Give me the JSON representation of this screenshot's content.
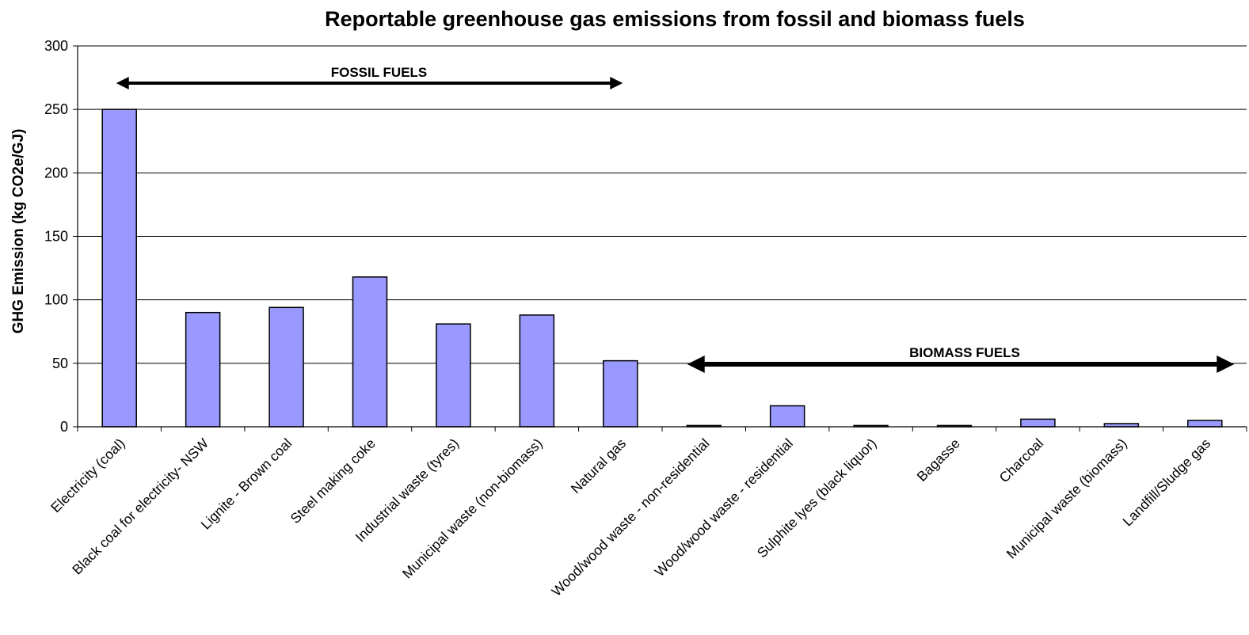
{
  "chart_data": {
    "type": "bar",
    "title": "Reportable greenhouse gas emissions from fossil and biomass fuels",
    "xlabel": "",
    "ylabel": "GHG Emission (kg CO2e/GJ)",
    "ylim": [
      0,
      300
    ],
    "yticks": [
      0,
      50,
      100,
      150,
      200,
      250,
      300
    ],
    "grid": true,
    "bar_color": "#9999ff",
    "categories": [
      "Electricity (coal)",
      "Black coal for electricity- NSW",
      "Lignite - Brown coal",
      "Steel making coke",
      "Industrial waste (tyres)",
      "Municipal waste (non-biomass)",
      "Natural gas",
      "Wood/wood waste - non-residential",
      "Wood/wood waste - residential",
      "Sulphite lyes (black liquor)",
      "Bagasse",
      "Charcoal",
      "Municipal waste (biomass)",
      "Landfill/Sludge gas"
    ],
    "values": [
      250,
      90,
      94,
      118,
      81,
      88,
      52,
      1,
      16.5,
      1,
      1,
      6,
      2.5,
      5
    ],
    "annotations": [
      {
        "text": "FOSSIL FUELS",
        "from_category": 0,
        "to_category": 6
      },
      {
        "text": "BIOMASS FUELS",
        "from_category": 7,
        "to_category": 13
      }
    ]
  }
}
